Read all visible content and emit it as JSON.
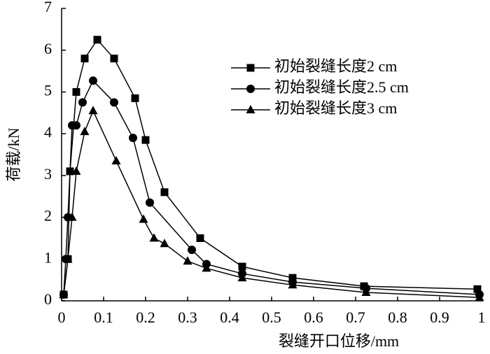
{
  "chart_data": {
    "type": "line",
    "x_label": "裂缝开口位移/mm",
    "y_label": "荷载/kN",
    "xlim": [
      0,
      1
    ],
    "ylim": [
      0,
      7
    ],
    "xticks": [
      0,
      0.1,
      0.2,
      0.3,
      0.4,
      0.5,
      0.6,
      0.7,
      0.8,
      0.9,
      1
    ],
    "yticks": [
      0,
      1,
      2,
      3,
      4,
      5,
      6,
      7
    ],
    "series": [
      {
        "name": "初始裂缝长度2 cm",
        "color": "#000000",
        "marker": "square",
        "x": [
          0.005,
          0.015,
          0.02,
          0.035,
          0.055,
          0.085,
          0.125,
          0.175,
          0.2,
          0.245,
          0.33,
          0.43,
          0.55,
          0.72,
          0.99
        ],
        "values": [
          0.15,
          1.0,
          3.1,
          5.0,
          5.8,
          6.25,
          5.8,
          4.85,
          3.85,
          2.6,
          1.5,
          0.82,
          0.55,
          0.35,
          0.28
        ]
      },
      {
        "name": "初始裂缝长度2.5 cm",
        "color": "#000000",
        "marker": "circle",
        "x": [
          0.005,
          0.01,
          0.015,
          0.025,
          0.035,
          0.05,
          0.075,
          0.125,
          0.17,
          0.21,
          0.31,
          0.345,
          0.43,
          0.55,
          0.725,
          0.995
        ],
        "values": [
          0.15,
          1.0,
          2.0,
          4.2,
          4.2,
          4.75,
          5.27,
          4.75,
          3.9,
          2.35,
          1.22,
          0.88,
          0.65,
          0.45,
          0.3,
          0.15
        ]
      },
      {
        "name": "初始裂缝长度3 cm",
        "color": "#000000",
        "marker": "triangle",
        "x": [
          0.005,
          0.015,
          0.025,
          0.035,
          0.055,
          0.075,
          0.13,
          0.195,
          0.22,
          0.245,
          0.3,
          0.345,
          0.43,
          0.55,
          0.725,
          0.995
        ],
        "values": [
          0.15,
          1.0,
          2.0,
          3.1,
          4.05,
          4.55,
          3.35,
          1.95,
          1.5,
          1.37,
          0.95,
          0.78,
          0.55,
          0.38,
          0.2,
          0.08
        ]
      }
    ]
  }
}
